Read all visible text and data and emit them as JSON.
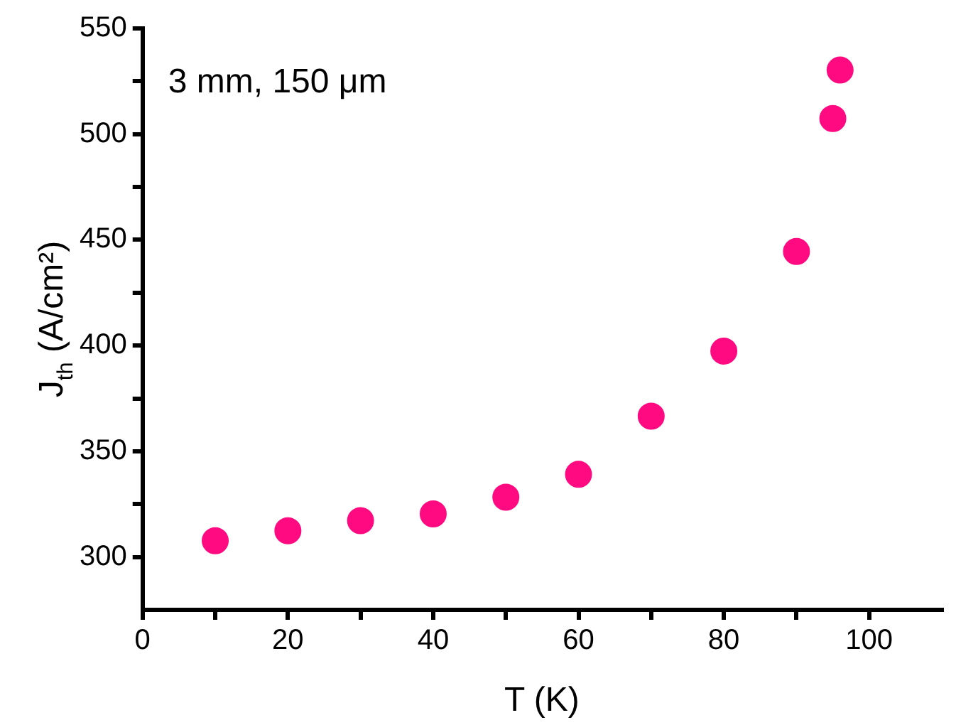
{
  "chart_data": {
    "type": "scatter",
    "xlabel": "T (K)",
    "ylabel": "J$_{th}$ (A/cm²)",
    "annotations": [
      "3 mm, 150 μm"
    ],
    "x": [
      10,
      20,
      30,
      40,
      50,
      60,
      70,
      80,
      90,
      95,
      96
    ],
    "series": [
      {
        "color": "#ff0a80",
        "values": [
          307.7,
          312.4,
          317.2,
          320.4,
          328.3,
          339.1,
          366.6,
          397.4,
          444.5,
          507.4,
          530.3
        ]
      }
    ],
    "xlim": [
      0,
      110
    ],
    "xticks": [
      0,
      {
        "value": 10,
        "label": null
      },
      20,
      {
        "value": 30,
        "label": null
      },
      40,
      {
        "value": 50,
        "label": null
      },
      60,
      {
        "value": 70,
        "label": null
      },
      80,
      {
        "value": 90,
        "label": null
      },
      100
    ],
    "ylim": [
      275,
      550
    ],
    "yticks": [
      300,
      {
        "value": 325,
        "label": null
      },
      350,
      {
        "value": 375,
        "label": null
      },
      400,
      {
        "value": 425,
        "label": null
      },
      450,
      {
        "value": 475,
        "label": null
      },
      500,
      {
        "value": 525,
        "label": null
      },
      550
    ],
    "grid": false,
    "legend": false,
    "marker": "circle"
  }
}
